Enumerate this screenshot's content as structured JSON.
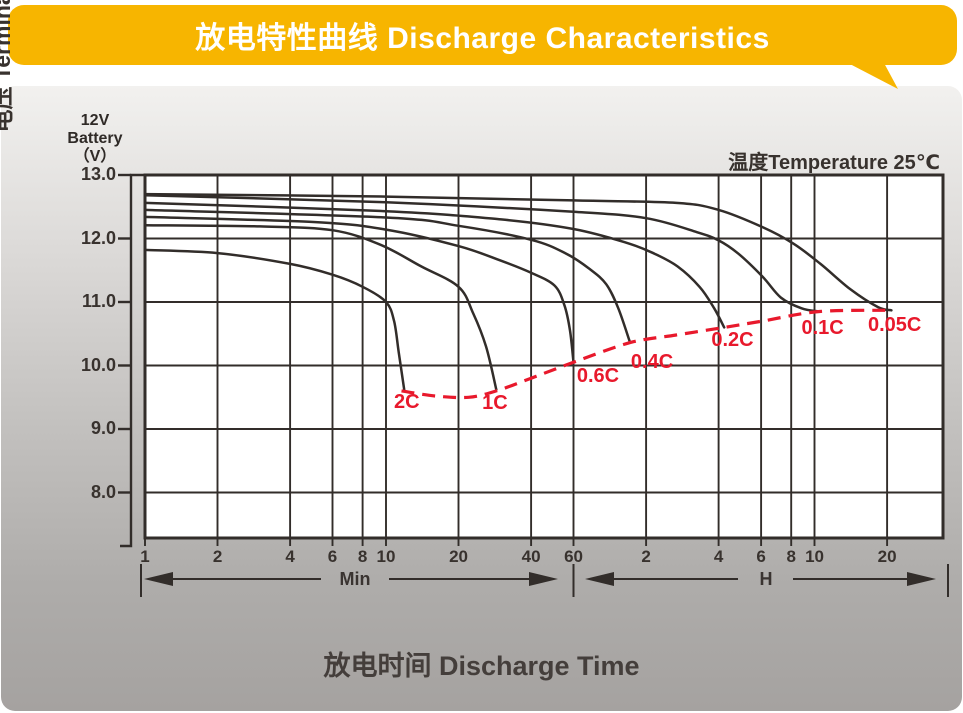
{
  "header": {
    "title": "放电特性曲线 Discharge Characteristics",
    "bg_color": "#F7B500",
    "text_color": "#ffffff"
  },
  "labels": {
    "battery": [
      "12V",
      "Battery",
      "（V）"
    ],
    "y_axis_title": "电压 Terminal Voltage(V)",
    "temperature": "温度Temperature 25℃",
    "x_axis_title": "放电时间 Discharge Time",
    "min_arrow": "Min",
    "hour_arrow": "H"
  },
  "chart_data": {
    "type": "line",
    "title": "放电特性曲线 Discharge Characteristics",
    "xlabel": "放电时间 Discharge Time",
    "ylabel": "电压 Terminal Voltage(V)",
    "x_scale": "log",
    "x_unit_split_minutes": 60,
    "x_ticks_min": [
      1,
      2,
      4,
      6,
      8,
      10,
      20,
      40,
      60
    ],
    "x_ticks_h": [
      2,
      4,
      6,
      8,
      10,
      20
    ],
    "y_ticks": [
      13.0,
      12.0,
      11.0,
      10.0,
      9.0,
      8.0
    ],
    "ylim": [
      7.28,
      13.0
    ],
    "xlim_minutes": [
      1,
      2050
    ],
    "grid": true,
    "temperature_c": 25,
    "line_color": "#322d2a",
    "cutoff_color": "#e8192c",
    "series": [
      {
        "name": "0.05C",
        "points": [
          [
            1,
            12.7
          ],
          [
            10,
            12.66
          ],
          [
            60,
            12.6
          ],
          [
            160,
            12.56
          ],
          [
            240,
            12.45
          ],
          [
            365,
            12.18
          ],
          [
            490,
            11.92
          ],
          [
            635,
            11.6
          ],
          [
            845,
            11.2
          ],
          [
            1100,
            10.92
          ],
          [
            1250,
            10.87
          ]
        ]
      },
      {
        "name": "0.1C",
        "points": [
          [
            1,
            12.68
          ],
          [
            10,
            12.57
          ],
          [
            60,
            12.42
          ],
          [
            120,
            12.32
          ],
          [
            195,
            12.1
          ],
          [
            240,
            11.97
          ],
          [
            290,
            11.76
          ],
          [
            365,
            11.4
          ],
          [
            435,
            11.07
          ],
          [
            530,
            10.9
          ],
          [
            630,
            10.85
          ]
        ]
      },
      {
        "name": "0.2C",
        "points": [
          [
            1,
            12.56
          ],
          [
            10,
            12.43
          ],
          [
            30,
            12.3
          ],
          [
            60,
            12.15
          ],
          [
            100,
            11.93
          ],
          [
            130,
            11.76
          ],
          [
            162,
            11.56
          ],
          [
            200,
            11.24
          ],
          [
            230,
            10.9
          ],
          [
            253,
            10.6
          ]
        ]
      },
      {
        "name": "0.4C",
        "points": [
          [
            1,
            12.45
          ],
          [
            10,
            12.33
          ],
          [
            20,
            12.2
          ],
          [
            40,
            11.98
          ],
          [
            56,
            11.76
          ],
          [
            70,
            11.52
          ],
          [
            82,
            11.28
          ],
          [
            92,
            10.9
          ],
          [
            103,
            10.36
          ]
        ]
      },
      {
        "name": "0.6C",
        "points": [
          [
            1,
            12.34
          ],
          [
            5,
            12.26
          ],
          [
            10,
            12.14
          ],
          [
            20,
            11.88
          ],
          [
            30,
            11.65
          ],
          [
            40,
            11.46
          ],
          [
            50,
            11.26
          ],
          [
            55,
            10.95
          ],
          [
            58,
            10.55
          ],
          [
            60,
            10.05
          ]
        ]
      },
      {
        "name": "1C",
        "points": [
          [
            1,
            12.21
          ],
          [
            3,
            12.19
          ],
          [
            6,
            12.13
          ],
          [
            9.5,
            11.9
          ],
          [
            14,
            11.56
          ],
          [
            20,
            11.24
          ],
          [
            23,
            10.82
          ],
          [
            26,
            10.3
          ],
          [
            28.7,
            9.62
          ]
        ]
      },
      {
        "name": "2C",
        "points": [
          [
            1,
            11.82
          ],
          [
            2,
            11.77
          ],
          [
            4,
            11.6
          ],
          [
            6,
            11.43
          ],
          [
            8,
            11.24
          ],
          [
            10,
            11.0
          ],
          [
            10.8,
            10.7
          ],
          [
            11.3,
            10.2
          ],
          [
            11.9,
            9.62
          ]
        ]
      }
    ],
    "cutoff_line": {
      "name": "discharge-end-voltage",
      "points": [
        [
          11.6,
          9.6
        ],
        [
          16,
          9.52
        ],
        [
          22,
          9.5
        ],
        [
          28.7,
          9.6
        ],
        [
          40,
          9.8
        ],
        [
          60,
          10.05
        ],
        [
          103,
          10.36
        ],
        [
          160,
          10.48
        ],
        [
          253,
          10.6
        ],
        [
          365,
          10.7
        ],
        [
          630,
          10.85
        ],
        [
          1250,
          10.87
        ]
      ]
    },
    "rate_labels": [
      {
        "text": "2C",
        "t": 12.2,
        "v": 9.41
      },
      {
        "text": "1C",
        "t": 28.3,
        "v": 9.39
      },
      {
        "text": "0.6C",
        "t": 75.8,
        "v": 9.82
      },
      {
        "text": "0.4C",
        "t": 127,
        "v": 10.04
      },
      {
        "text": "0.2C",
        "t": 274,
        "v": 10.39
      },
      {
        "text": "0.1C",
        "t": 648,
        "v": 10.57
      },
      {
        "text": "0.05C",
        "t": 1290,
        "v": 10.62
      }
    ]
  }
}
